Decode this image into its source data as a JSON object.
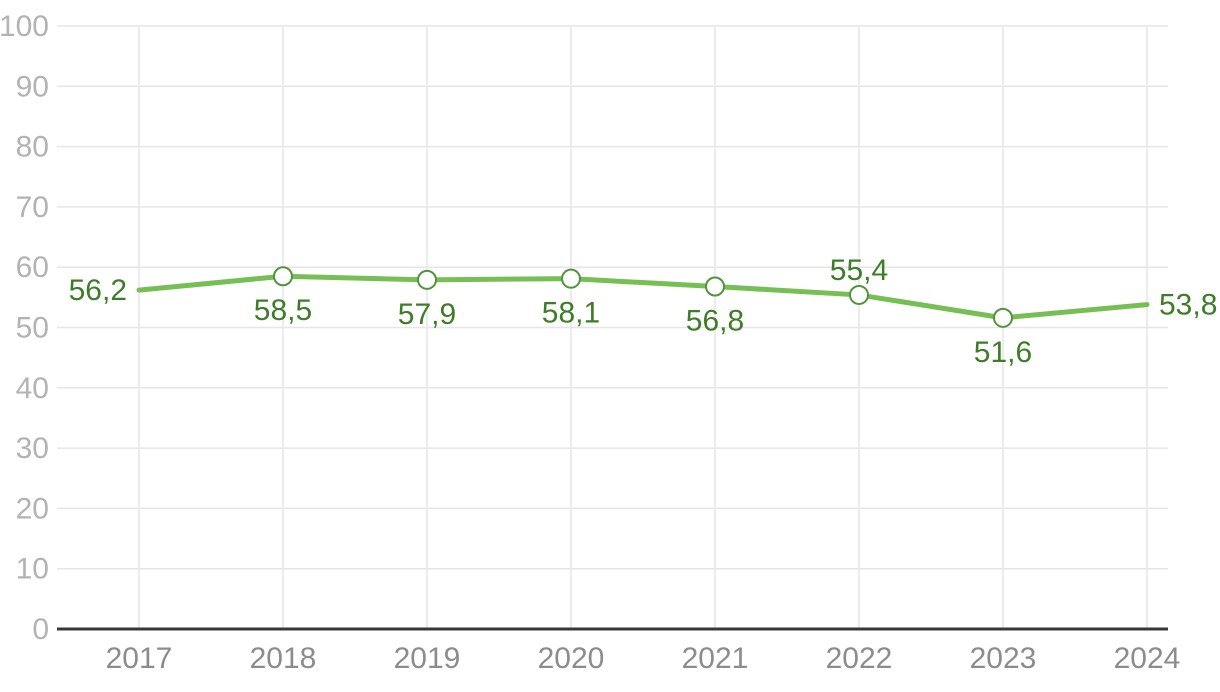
{
  "chart_data": {
    "type": "line",
    "categories": [
      "2017",
      "2018",
      "2019",
      "2020",
      "2021",
      "2022",
      "2023",
      "2024"
    ],
    "series": [
      {
        "name": "series-1",
        "values": [
          56.2,
          58.5,
          57.9,
          58.1,
          56.8,
          55.4,
          51.6,
          53.8
        ],
        "value_labels": [
          "56,2",
          "58,5",
          "57,9",
          "58,1",
          "56,8",
          "55,4",
          "51,6",
          "53,8"
        ],
        "label_positions": [
          "left",
          "below",
          "below",
          "below",
          "below",
          "above",
          "below",
          "right"
        ]
      }
    ],
    "title": "",
    "xlabel": "",
    "ylabel": "",
    "ylim": [
      0,
      100
    ],
    "y_tick_step": 10,
    "y_tick_labels": [
      "0",
      "10",
      "20",
      "30",
      "40",
      "50",
      "60",
      "70",
      "80",
      "90",
      "100"
    ],
    "grid": true,
    "legend": "none",
    "colors": {
      "line": "#76bf55",
      "marker_stroke": "#53933b",
      "marker_fill": "#ffffff",
      "data_label": "#3e7d27",
      "x_tick_label": "#8c8c8c",
      "y_tick_label": "#b3b3b3",
      "gridline": "#e6e6e6",
      "axis_line": "#383838",
      "background": "#ffffff"
    }
  }
}
